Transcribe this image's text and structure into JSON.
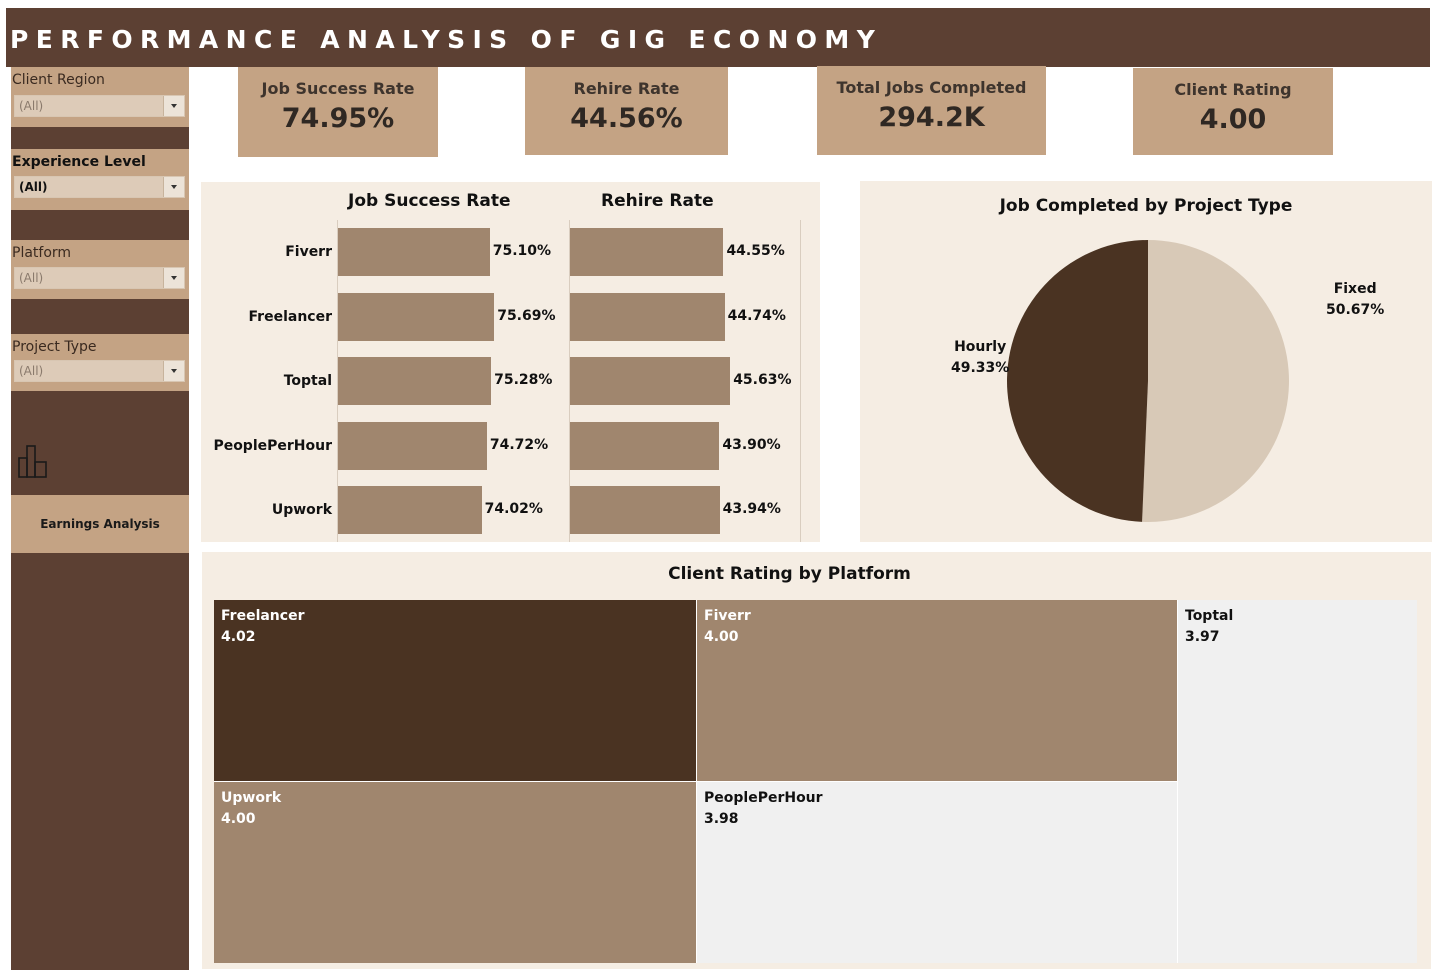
{
  "header": {
    "title": "PERFORMANCE ANALYSIS OF GIG ECONOMY"
  },
  "filters": [
    {
      "label": "Client Region",
      "value": "(All)"
    },
    {
      "label": "Experience Level",
      "value": "(All)"
    },
    {
      "label": "Platform",
      "value": "(All)"
    },
    {
      "label": "Project Type",
      "value": "(All)"
    }
  ],
  "nav": {
    "icon": "bar-chart-icon",
    "button_label": "Earnings Analysis"
  },
  "kpis": [
    {
      "label": "Job Success Rate",
      "value": "74.95%"
    },
    {
      "label": "Rehire Rate",
      "value": "44.56%"
    },
    {
      "label": "Total Jobs Completed",
      "value": "294.2K"
    },
    {
      "label": "Client Rating",
      "value": "4.00"
    }
  ],
  "colors": {
    "header": "#5c4033",
    "accent": "#c4a384",
    "panel": "#f5ede3",
    "bar": "#a0866e",
    "dark": "#4a3322",
    "light": "#d8c9b7",
    "treemap_light": "#f0f0f0"
  },
  "chart_data": [
    {
      "type": "bar",
      "orientation": "horizontal",
      "categories": [
        "Fiverr",
        "Freelancer",
        "Toptal",
        "PeoplePerHour",
        "Upwork"
      ],
      "series": [
        {
          "name": "Job Success Rate",
          "values": [
            75.1,
            75.69,
            75.28,
            74.72,
            74.02
          ],
          "labels": [
            "75.10%",
            "75.69%",
            "75.28%",
            "74.72%",
            "74.02%"
          ]
        },
        {
          "name": "Rehire Rate",
          "values": [
            44.55,
            44.74,
            45.63,
            43.9,
            43.94
          ],
          "labels": [
            "44.55%",
            "44.74%",
            "45.63%",
            "43.90%",
            "43.94%"
          ]
        }
      ]
    },
    {
      "type": "pie",
      "title": "Job Completed by Project Type",
      "slices": [
        {
          "name": "Fixed",
          "value": 50.67,
          "label": "50.67%",
          "color": "#d8c9b7"
        },
        {
          "name": "Hourly",
          "value": 49.33,
          "label": "49.33%",
          "color": "#4a3322"
        }
      ]
    },
    {
      "type": "treemap",
      "title": "Client Rating by Platform",
      "items": [
        {
          "name": "Freelancer",
          "value": 4.02,
          "label": "4.02",
          "color": "#4a3322",
          "text_color": "#ffffff"
        },
        {
          "name": "Fiverr",
          "value": 4.0,
          "label": "4.00",
          "color": "#a0866e",
          "text_color": "#ffffff"
        },
        {
          "name": "Toptal",
          "value": 3.97,
          "label": "3.97",
          "color": "#f0f0f0",
          "text_color": "#111111"
        },
        {
          "name": "Upwork",
          "value": 4.0,
          "label": "4.00",
          "color": "#a0866e",
          "text_color": "#ffffff"
        },
        {
          "name": "PeoplePerHour",
          "value": 3.98,
          "label": "3.98",
          "color": "#f0f0f0",
          "text_color": "#111111"
        }
      ]
    }
  ]
}
